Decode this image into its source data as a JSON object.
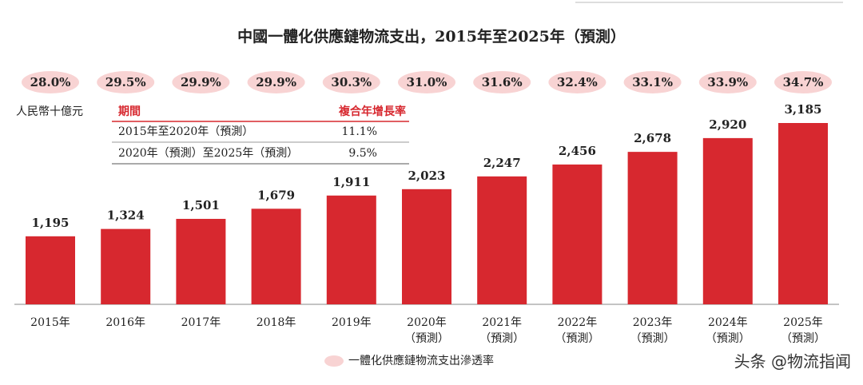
{
  "chart_data": {
    "type": "bar",
    "title": "中國一體化供應鏈物流支出，2015年至2025年（預測）",
    "unit_label": "人民幣十億元",
    "categories": [
      [
        "2015年"
      ],
      [
        "2016年"
      ],
      [
        "2017年"
      ],
      [
        "2018年"
      ],
      [
        "2019年"
      ],
      [
        "2020年",
        "（預測）"
      ],
      [
        "2021年",
        "（預測）"
      ],
      [
        "2022年",
        "（預測）"
      ],
      [
        "2023年",
        "（預測）"
      ],
      [
        "2024年",
        "（預測）"
      ],
      [
        "2025年",
        "（預測）"
      ]
    ],
    "values": [
      1195,
      1324,
      1501,
      1679,
      1911,
      2023,
      2247,
      2456,
      2678,
      2920,
      3185
    ],
    "value_labels": [
      "1,195",
      "1,324",
      "1,501",
      "1,679",
      "1,911",
      "2,023",
      "2,247",
      "2,456",
      "2,678",
      "2,920",
      "3,185"
    ],
    "color": "#d7282f",
    "rate_series": {
      "name": "一體化供應鏈物流支出滲透率",
      "color": "#f8d3d3",
      "values": [
        28.0,
        29.5,
        29.9,
        29.9,
        30.3,
        31.0,
        31.6,
        32.4,
        33.1,
        33.9,
        34.7
      ],
      "value_labels": [
        "28.0%",
        "29.5%",
        "29.9%",
        "29.9%",
        "30.3%",
        "31.0%",
        "31.6%",
        "32.4%",
        "33.1%",
        "33.9%",
        "34.7%"
      ]
    }
  },
  "table": {
    "header": [
      "期間",
      "複合年增長率"
    ],
    "rows": [
      [
        "2015年至2020年（預測）",
        "11.1%"
      ],
      [
        "2020年（預測）至2025年（預測）",
        "9.5%"
      ]
    ]
  },
  "watermark": "头条 @物流指闻"
}
